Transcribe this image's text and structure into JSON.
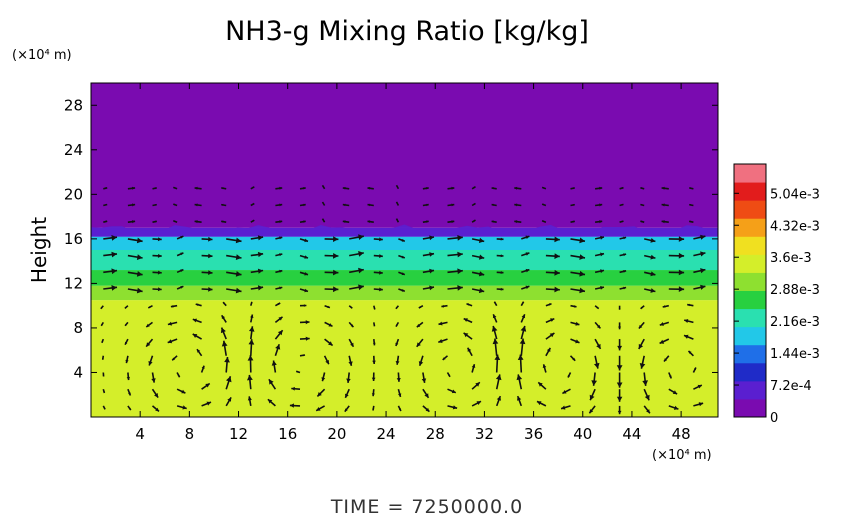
{
  "chart_data": {
    "type": "heatmap",
    "title": "NH3-g Mixing Ratio [kg/kg]",
    "ylabel": "Height",
    "xlabel": "",
    "x_unit": "(×10⁴ m)",
    "y_unit": "(×10⁴ m)",
    "x_ticks": [
      4,
      8,
      12,
      16,
      20,
      24,
      28,
      32,
      36,
      40,
      44,
      48
    ],
    "y_ticks": [
      4,
      8,
      12,
      16,
      20,
      24,
      28
    ],
    "xlim": [
      0,
      51
    ],
    "ylim": [
      0,
      30
    ],
    "colorbar": {
      "labels": [
        "0",
        "7.2e-4",
        "1.44e-3",
        "2.16e-3",
        "2.88e-3",
        "3.6e-3",
        "4.32e-3",
        "5.04e-3"
      ],
      "values": [
        0,
        0.00072,
        0.00144,
        0.00216,
        0.00288,
        0.0036,
        0.00432,
        0.00504
      ],
      "max": 0.0057,
      "colors": [
        "#7a0bb0",
        "#5a1fd0",
        "#1f2bc8",
        "#1f6fe8",
        "#22c8e8",
        "#2ae0b0",
        "#28d040",
        "#8ee030",
        "#d4ee2a",
        "#f0e020",
        "#f5a018",
        "#ef4c14",
        "#e21c1c",
        "#f07080"
      ]
    },
    "layers": [
      {
        "from": 0,
        "to": 10.5,
        "value": 0.0033
      },
      {
        "from": 10.5,
        "to": 11.8,
        "value": 0.003
      },
      {
        "from": 11.8,
        "to": 13.2,
        "value": 0.0026
      },
      {
        "from": 13.2,
        "to": 15.0,
        "value": 0.0022
      },
      {
        "from": 15.0,
        "to": 16.2,
        "value": 0.0019
      },
      {
        "from": 16.2,
        "to": 17.0,
        "value": 0.0008
      },
      {
        "from": 17.0,
        "to": 30,
        "value": 0.0
      }
    ],
    "vector_field": "wind arrows overlay (circulation cells)"
  },
  "time_label": "TIME  =  7250000.0"
}
